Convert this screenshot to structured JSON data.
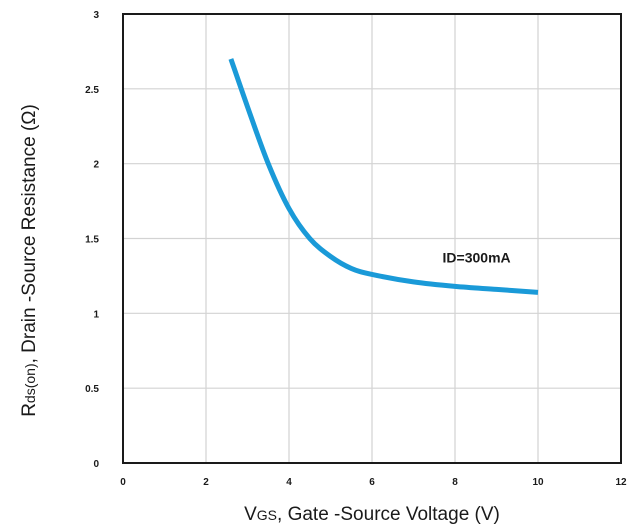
{
  "chart_data": {
    "type": "line",
    "title": "",
    "xlabel": {
      "main_prefix": "V",
      "sub": "GS",
      "main_suffix": ", Gate -Source Voltage (V)"
    },
    "ylabel": {
      "main_prefix": "R",
      "sub": "ds(on)",
      "main_suffix": ", Drain -Source Resistance (Ω)"
    },
    "xlim": [
      0,
      12
    ],
    "ylim": [
      0,
      3
    ],
    "x_ticks": [
      "0",
      "2",
      "4",
      "6",
      "8",
      "10",
      "12"
    ],
    "y_ticks": [
      "0",
      "0.5",
      "1",
      "1.5",
      "2",
      "2.5",
      "3"
    ],
    "grid": true,
    "series": [
      {
        "name": "ID=300mA",
        "color": "#1a9ad8",
        "x": [
          2.6,
          3.0,
          3.5,
          4.0,
          4.5,
          5.0,
          5.5,
          6.0,
          7.0,
          8.0,
          9.0,
          10.0
        ],
        "y": [
          2.7,
          2.38,
          2.0,
          1.7,
          1.5,
          1.38,
          1.3,
          1.26,
          1.21,
          1.18,
          1.16,
          1.14
        ]
      }
    ],
    "annotations": [
      {
        "text": "ID=300mA",
        "x": 7.7,
        "y": 1.34
      }
    ]
  }
}
